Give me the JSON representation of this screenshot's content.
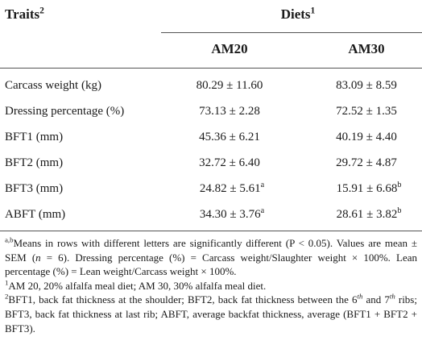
{
  "table": {
    "header": {
      "traits": {
        "text": "Traits",
        "sup": "2"
      },
      "diets": {
        "text": "Diets",
        "sup": "1"
      },
      "columns": [
        "AM20",
        "AM30"
      ]
    },
    "rows": [
      {
        "trait": "Carcass weight (kg)",
        "values": [
          "80.29 ± 11.60",
          "83.09 ± 8.59"
        ]
      },
      {
        "trait": "Dressing percentage (%)",
        "values": [
          "73.13 ± 2.28",
          "72.52 ± 1.35"
        ]
      },
      {
        "trait": "BFT1 (mm)",
        "values": [
          "45.36 ± 6.21",
          "40.19 ± 4.40"
        ]
      },
      {
        "trait": "BFT2 (mm)",
        "values": [
          "32.72 ± 6.40",
          "29.72 ± 4.87"
        ]
      },
      {
        "trait": "BFT3 (mm)",
        "values": [
          {
            "text": "24.82 ± 5.61",
            "sup": "a"
          },
          {
            "text": "15.91 ± 6.68",
            "sup": "b"
          }
        ]
      },
      {
        "trait": "ABFT (mm)",
        "values": [
          {
            "text": "34.30 ± 3.76",
            "sup": "a"
          },
          {
            "text": "28.61 ± 3.82",
            "sup": "b"
          }
        ]
      }
    ]
  },
  "footnotes": [
    [
      {
        "text": "a,b",
        "style": "sup"
      },
      {
        "text": "Means in rows with different letters are significantly different (P < 0.05). Values are mean ± SEM ("
      },
      {
        "text": "n",
        "style": "italic"
      },
      {
        "text": " = 6). Dressing percentage (%) = Carcass weight/Slaughter weight × 100%. Lean percentage (%) = Lean weight/Carcass weight × 100%."
      }
    ],
    [
      {
        "text": "1",
        "style": "sup"
      },
      {
        "text": "AM 20, 20% alfalfa meal diet; AM 30, 30% alfalfa meal diet."
      }
    ],
    [
      {
        "text": "2",
        "style": "sup"
      },
      {
        "text": "BFT1, back fat thickness at the shoulder; BFT2, back fat thickness between the 6"
      },
      {
        "text": "th",
        "style": "sup-italic"
      },
      {
        "text": " and 7"
      },
      {
        "text": "th",
        "style": "sup-italic"
      },
      {
        "text": " ribs; BFT3, back fat thickness at last rib; ABFT, average backfat thickness, average (BFT1 + BFT2 + BFT3)."
      }
    ]
  ]
}
